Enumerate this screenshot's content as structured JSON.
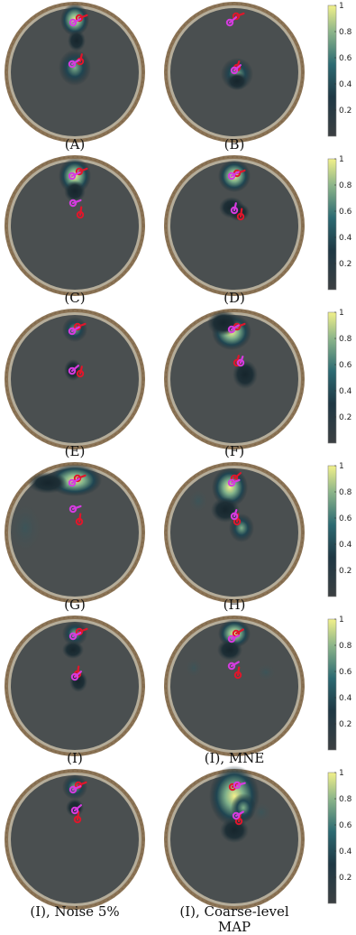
{
  "panels": [
    {
      "caption": "(A)"
    },
    {
      "caption": "(B)"
    },
    {
      "caption": "(C)"
    },
    {
      "caption": "(D)"
    },
    {
      "caption": "(E)"
    },
    {
      "caption": "(F)"
    },
    {
      "caption": "(G)"
    },
    {
      "caption": "(H)"
    },
    {
      "caption": "(I)"
    },
    {
      "caption": "(I), MNE"
    },
    {
      "caption": "(I), Noise 5%"
    },
    {
      "caption": "(I), Coarse-level MAP"
    }
  ],
  "colorbar": {
    "ticks": [
      "1",
      "0.8",
      "0.6",
      "0.4",
      "0.2"
    ],
    "tick_values": [
      1,
      0.8,
      0.6,
      0.4,
      0.2
    ],
    "range": [
      0,
      1
    ]
  },
  "colors": {
    "skull_outer": "#8b7355",
    "skull_inner": "#b5ad9a",
    "brain_bg": "#4a4f50",
    "true_source_marker": "#e0162b",
    "estimate_marker": "#d63be0"
  }
}
